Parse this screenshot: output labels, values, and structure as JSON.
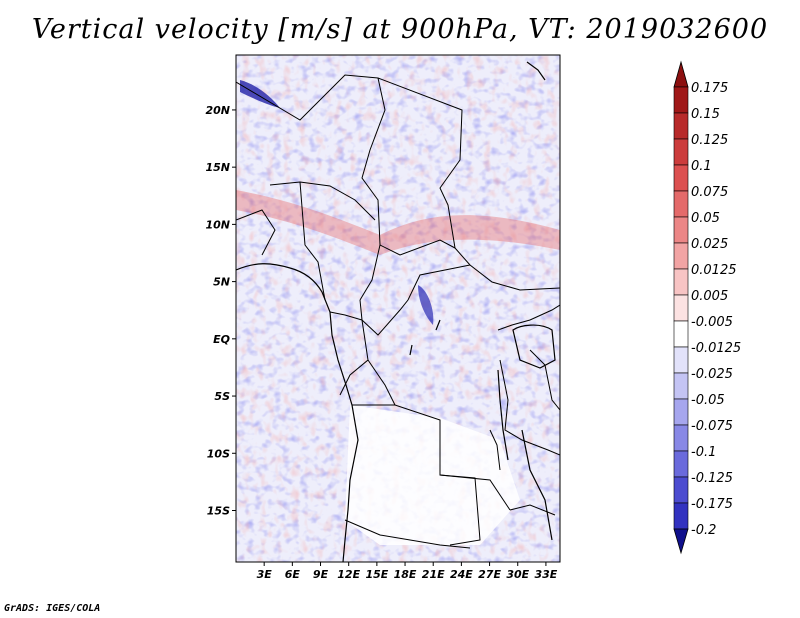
{
  "title": "Vertical velocity [m/s] at 900hPa, VT: 2019032600",
  "credit": "GrADS: IGES/COLA",
  "map": {
    "lon_range": [
      0,
      34.5
    ],
    "lat_range": [
      -19.5,
      24.8
    ],
    "lat_ticks": [
      {
        "value": 20,
        "label": "20N"
      },
      {
        "value": 15,
        "label": "15N"
      },
      {
        "value": 10,
        "label": "10N"
      },
      {
        "value": 5,
        "label": "5N"
      },
      {
        "value": 0,
        "label": "EQ"
      },
      {
        "value": -5,
        "label": "5S"
      },
      {
        "value": -10,
        "label": "10S"
      },
      {
        "value": -15,
        "label": "15S"
      }
    ],
    "lon_ticks": [
      {
        "value": 3,
        "label": "3E"
      },
      {
        "value": 6,
        "label": "6E"
      },
      {
        "value": 9,
        "label": "9E"
      },
      {
        "value": 12,
        "label": "12E"
      },
      {
        "value": 15,
        "label": "15E"
      },
      {
        "value": 18,
        "label": "18E"
      },
      {
        "value": 21,
        "label": "21E"
      },
      {
        "value": 24,
        "label": "24E"
      },
      {
        "value": 27,
        "label": "27E"
      },
      {
        "value": 30,
        "label": "30E"
      },
      {
        "value": 33,
        "label": "33E"
      }
    ]
  },
  "colorbar": {
    "levels": [
      {
        "label": "0.175",
        "color": "#a01818"
      },
      {
        "label": "0.15",
        "color": "#b82a2a"
      },
      {
        "label": "0.125",
        "color": "#cc3c3c"
      },
      {
        "label": "0.1",
        "color": "#dc5050"
      },
      {
        "label": "0.075",
        "color": "#e46a6a"
      },
      {
        "label": "0.05",
        "color": "#ec8686"
      },
      {
        "label": "0.025",
        "color": "#f2a4a4"
      },
      {
        "label": "0.0125",
        "color": "#f8c4c4"
      },
      {
        "label": "0.005",
        "color": "#fce2e2"
      },
      {
        "label": "-0.005",
        "color": "#ffffff"
      },
      {
        "label": "-0.0125",
        "color": "#e2e2fa"
      },
      {
        "label": "-0.025",
        "color": "#c4c4f4"
      },
      {
        "label": "-0.05",
        "color": "#a6a6ee"
      },
      {
        "label": "-0.075",
        "color": "#8888e6"
      },
      {
        "label": "-0.1",
        "color": "#6a6adc"
      },
      {
        "label": "-0.125",
        "color": "#4c4cd0"
      },
      {
        "label": "-0.175",
        "color": "#3232c0"
      },
      {
        "label": "-0.2",
        "color": "#1c1ca8"
      }
    ],
    "top_color": "#8c1010",
    "bottom_color": "#10108c"
  }
}
